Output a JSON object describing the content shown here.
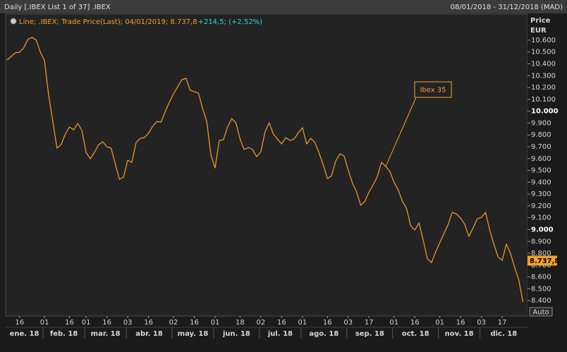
{
  "chart_data": {
    "type": "line",
    "header_left": "Daily [.IBEX List 1 of 37] .IBEX",
    "header_right": "08/01/2018 - 31/12/2018 (MAD)",
    "legend_text": "Line; .IBEX; Trade Price(Last); 04/01/2019; 8.737,8",
    "legend_change": "+214,5; (+2,52%)",
    "y_axis_label": "Price",
    "y_axis_unit": "EUR",
    "annotation": "Ibex 35",
    "auto_label": "Auto",
    "last_value": {
      "value": 8737.8,
      "label": "8.737,8"
    },
    "color": "#f5a02a",
    "grid": false,
    "ylim": [
      8270,
      10820
    ],
    "yticks": [
      {
        "value": 10600,
        "label": "10.600"
      },
      {
        "value": 10500,
        "label": "10.500"
      },
      {
        "value": 10400,
        "label": "10.400"
      },
      {
        "value": 10300,
        "label": "10.300"
      },
      {
        "value": 10200,
        "label": "10.200"
      },
      {
        "value": 10100,
        "label": "10.100"
      },
      {
        "value": 10000,
        "label": "10.000"
      },
      {
        "value": 9900,
        "label": "9.900"
      },
      {
        "value": 9800,
        "label": "9.800"
      },
      {
        "value": 9700,
        "label": "9.700"
      },
      {
        "value": 9600,
        "label": "9.600"
      },
      {
        "value": 9500,
        "label": "9.500"
      },
      {
        "value": 9400,
        "label": "9.400"
      },
      {
        "value": 9300,
        "label": "9.300"
      },
      {
        "value": 9200,
        "label": "9.200"
      },
      {
        "value": 9100,
        "label": "9.100"
      },
      {
        "value": 9000,
        "label": "9.000"
      },
      {
        "value": 8900,
        "label": "8.900"
      },
      {
        "value": 8800,
        "label": "8.800"
      },
      {
        "value": 8700,
        "label": "8.700"
      },
      {
        "value": 8600,
        "label": "8.600"
      },
      {
        "value": 8500,
        "label": "8.500"
      },
      {
        "value": 8400,
        "label": "8.400"
      }
    ],
    "months": [
      "ene. 18",
      "feb. 18",
      "mar. 18",
      "abr. 18",
      "may. 18",
      "jun. 18",
      "jul. 18",
      "ago. 18",
      "sep. 18",
      "oct. 18",
      "nov. 18",
      "dic. 18"
    ],
    "categories": [
      null,
      null,
      null,
      "16",
      null,
      null,
      null,
      null,
      null,
      "01",
      null,
      null,
      null,
      null,
      null,
      "16",
      null,
      null,
      null,
      "01",
      null,
      null,
      null,
      null,
      "16",
      null,
      null,
      null,
      null,
      "03",
      null,
      null,
      null,
      null,
      "16",
      null,
      null,
      null,
      null,
      null,
      "02",
      null,
      null,
      null,
      null,
      "16",
      null,
      null,
      null,
      null,
      "01",
      null,
      null,
      null,
      null,
      null,
      "18",
      null,
      null,
      null,
      null,
      "02",
      null,
      null,
      null,
      null,
      "16",
      null,
      null,
      null,
      null,
      "01",
      null,
      null,
      null,
      null,
      null,
      "16",
      null,
      null,
      null,
      null,
      "03",
      null,
      null,
      null,
      null,
      "17",
      null,
      null,
      null,
      null,
      null,
      "01",
      null,
      null,
      null,
      null,
      "16",
      null,
      null,
      null,
      null,
      null,
      "01",
      null,
      null,
      null,
      null,
      "16",
      null,
      null,
      null,
      null,
      "03",
      null,
      null,
      null,
      null,
      "17",
      null,
      null,
      null,
      null,
      null
    ],
    "values": [
      10433,
      10463,
      10493,
      10499,
      10534,
      10606,
      10624,
      10600,
      10499,
      10427,
      10135,
      9914,
      9688,
      9717,
      9807,
      9867,
      9843,
      9896,
      9837,
      9652,
      9598,
      9652,
      9717,
      9741,
      9700,
      9688,
      9556,
      9425,
      9443,
      9586,
      9568,
      9735,
      9771,
      9777,
      9813,
      9872,
      9914,
      9908,
      9998,
      10075,
      10147,
      10206,
      10266,
      10278,
      10177,
      10165,
      10153,
      10022,
      9914,
      9628,
      9521,
      9753,
      9759,
      9867,
      9938,
      9902,
      9765,
      9676,
      9694,
      9676,
      9616,
      9658,
      9825,
      9902,
      9807,
      9765,
      9723,
      9777,
      9753,
      9765,
      9819,
      9861,
      9723,
      9771,
      9735,
      9646,
      9545,
      9431,
      9455,
      9580,
      9640,
      9622,
      9503,
      9395,
      9318,
      9205,
      9240,
      9318,
      9378,
      9449,
      9568,
      9533,
      9491,
      9401,
      9336,
      9240,
      9181,
      9032,
      8996,
      9056,
      8912,
      8757,
      8721,
      8811,
      8889,
      8966,
      9044,
      9145,
      9133,
      9097,
      9044,
      8942,
      9014,
      9091,
      9103,
      9145,
      8996,
      8877,
      8769,
      8740,
      8877,
      8799,
      8680,
      8573,
      8388
    ]
  }
}
